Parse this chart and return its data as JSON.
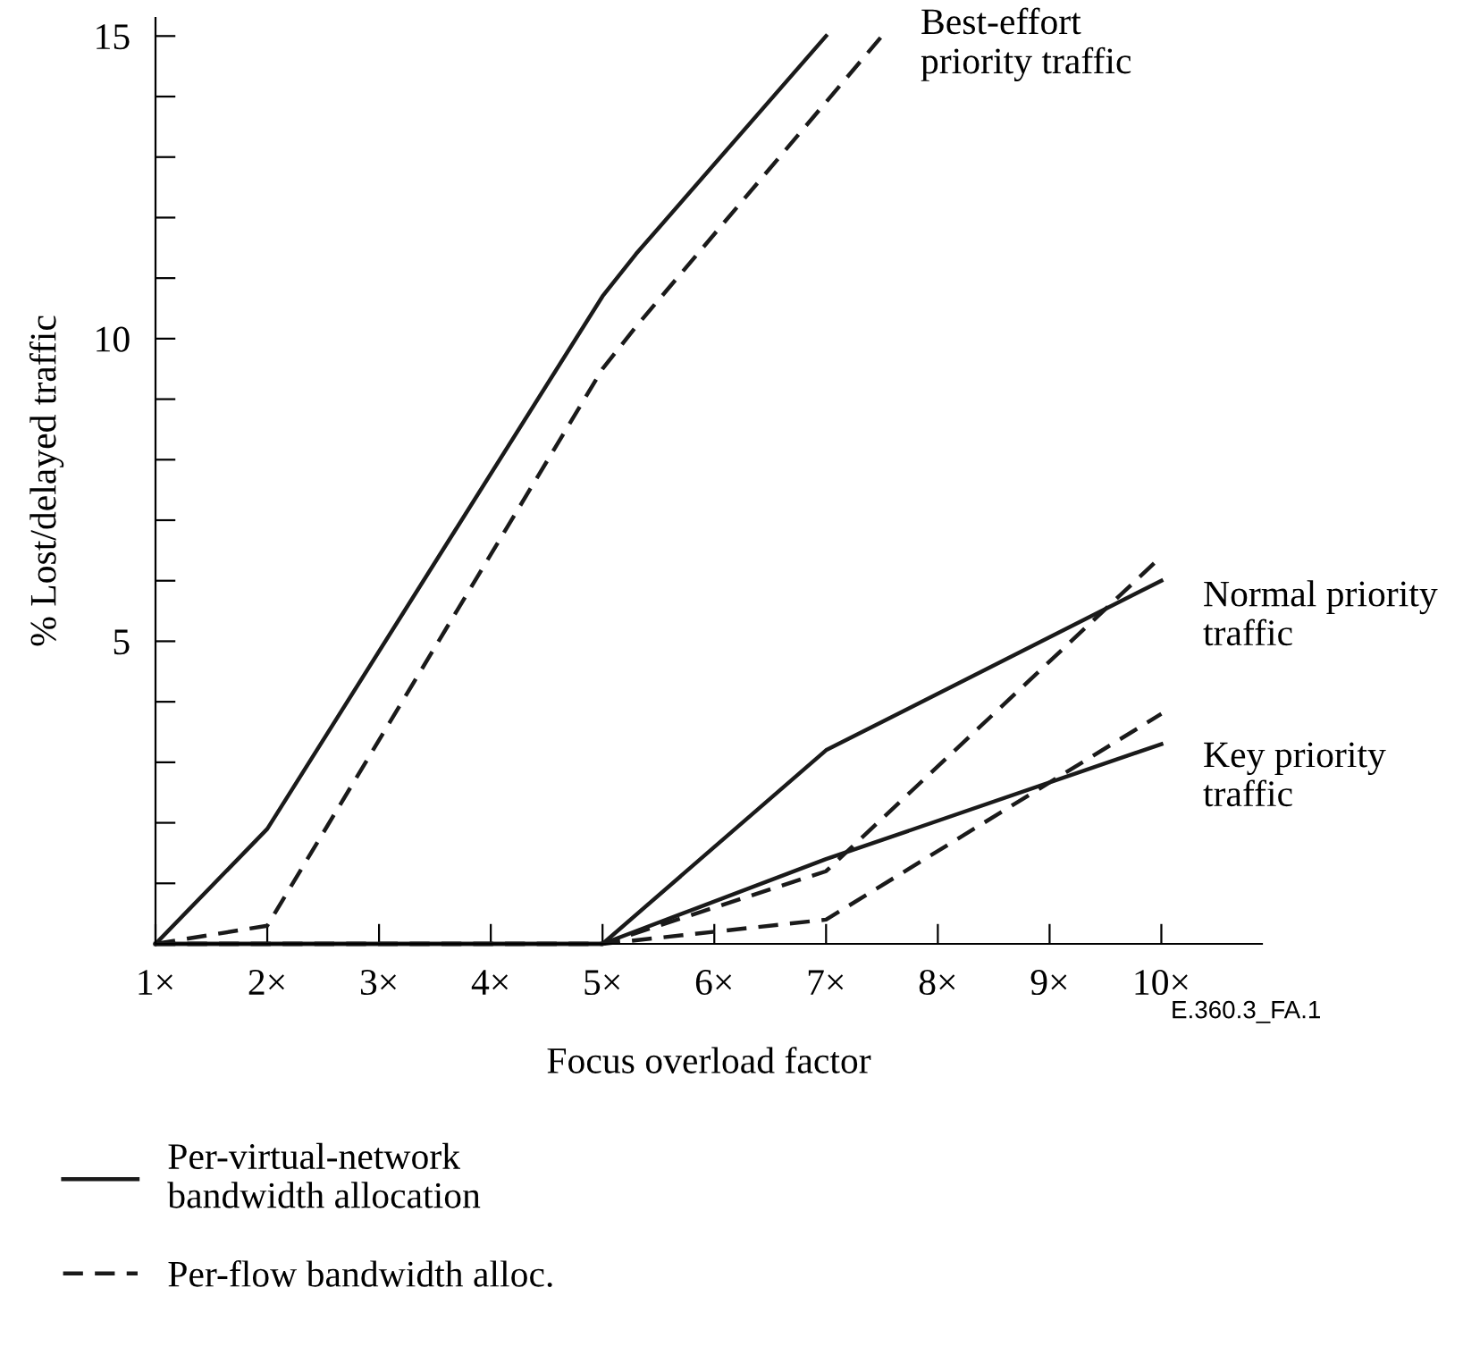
{
  "chart_data": {
    "type": "line",
    "xlabel": "Focus overload factor",
    "ylabel": "% Lost/delayed traffic",
    "xlim": [
      1,
      10.9
    ],
    "ylim": [
      0,
      15.3
    ],
    "xticks": [
      {
        "value": 1,
        "label": "1×"
      },
      {
        "value": 2,
        "label": "2×"
      },
      {
        "value": 3,
        "label": "3×"
      },
      {
        "value": 4,
        "label": "4×"
      },
      {
        "value": 5,
        "label": "5×"
      },
      {
        "value": 6,
        "label": "6×"
      },
      {
        "value": 7,
        "label": "7×"
      },
      {
        "value": 8,
        "label": "8×"
      },
      {
        "value": 9,
        "label": "9×"
      },
      {
        "value": 10,
        "label": "10×"
      }
    ],
    "yticks": [
      {
        "value": 0,
        "label": null
      },
      {
        "value": 1,
        "label": null
      },
      {
        "value": 2,
        "label": null
      },
      {
        "value": 3,
        "label": null
      },
      {
        "value": 4,
        "label": null
      },
      5,
      {
        "value": 6,
        "label": null
      },
      {
        "value": 7,
        "label": null
      },
      {
        "value": 8,
        "label": null
      },
      {
        "value": 9,
        "label": null
      },
      10,
      {
        "value": 11,
        "label": null
      },
      {
        "value": 12,
        "label": null
      },
      {
        "value": 13,
        "label": null
      },
      {
        "value": 14,
        "label": null
      },
      15
    ],
    "grid": false,
    "legend": "bottom",
    "marker": "none",
    "series": [
      {
        "name": "Per-virtual-network\nbandwidth allocation",
        "color": "#1a1a1a",
        "line_style": "solid",
        "x": [
          1,
          2,
          5,
          5.3,
          7
        ],
        "values": [
          0,
          1.9,
          10.7,
          11.4,
          15
        ]
      },
      {
        "name": "Per-flow bandwidth alloc.",
        "color": "#1a1a1a",
        "line_style": "dashed",
        "x": [
          1,
          2,
          5,
          5.3,
          7.5
        ],
        "values": [
          0,
          0.3,
          9.5,
          10.2,
          15
        ]
      },
      {
        "color": "#1a1a1a",
        "line_style": "solid",
        "x": [
          1,
          5,
          7,
          10
        ],
        "values": [
          0,
          0,
          3.2,
          6
        ]
      },
      {
        "color": "#1a1a1a",
        "line_style": "dashed",
        "x": [
          1,
          5,
          7,
          10
        ],
        "values": [
          0,
          0,
          1.2,
          6.4
        ]
      },
      {
        "color": "#1a1a1a",
        "line_style": "solid",
        "x": [
          1,
          5,
          7,
          10
        ],
        "values": [
          0,
          0,
          1.4,
          3.3
        ]
      },
      {
        "color": "#1a1a1a",
        "line_style": "dashed",
        "x": [
          1,
          5,
          7,
          10
        ],
        "values": [
          0,
          0,
          0.4,
          3.8
        ]
      }
    ],
    "annotations": [
      "Best-effort\npriority traffic",
      "Normal priority\ntraffic",
      "Key priority\ntraffic",
      "E.360.3_FA.1"
    ]
  }
}
